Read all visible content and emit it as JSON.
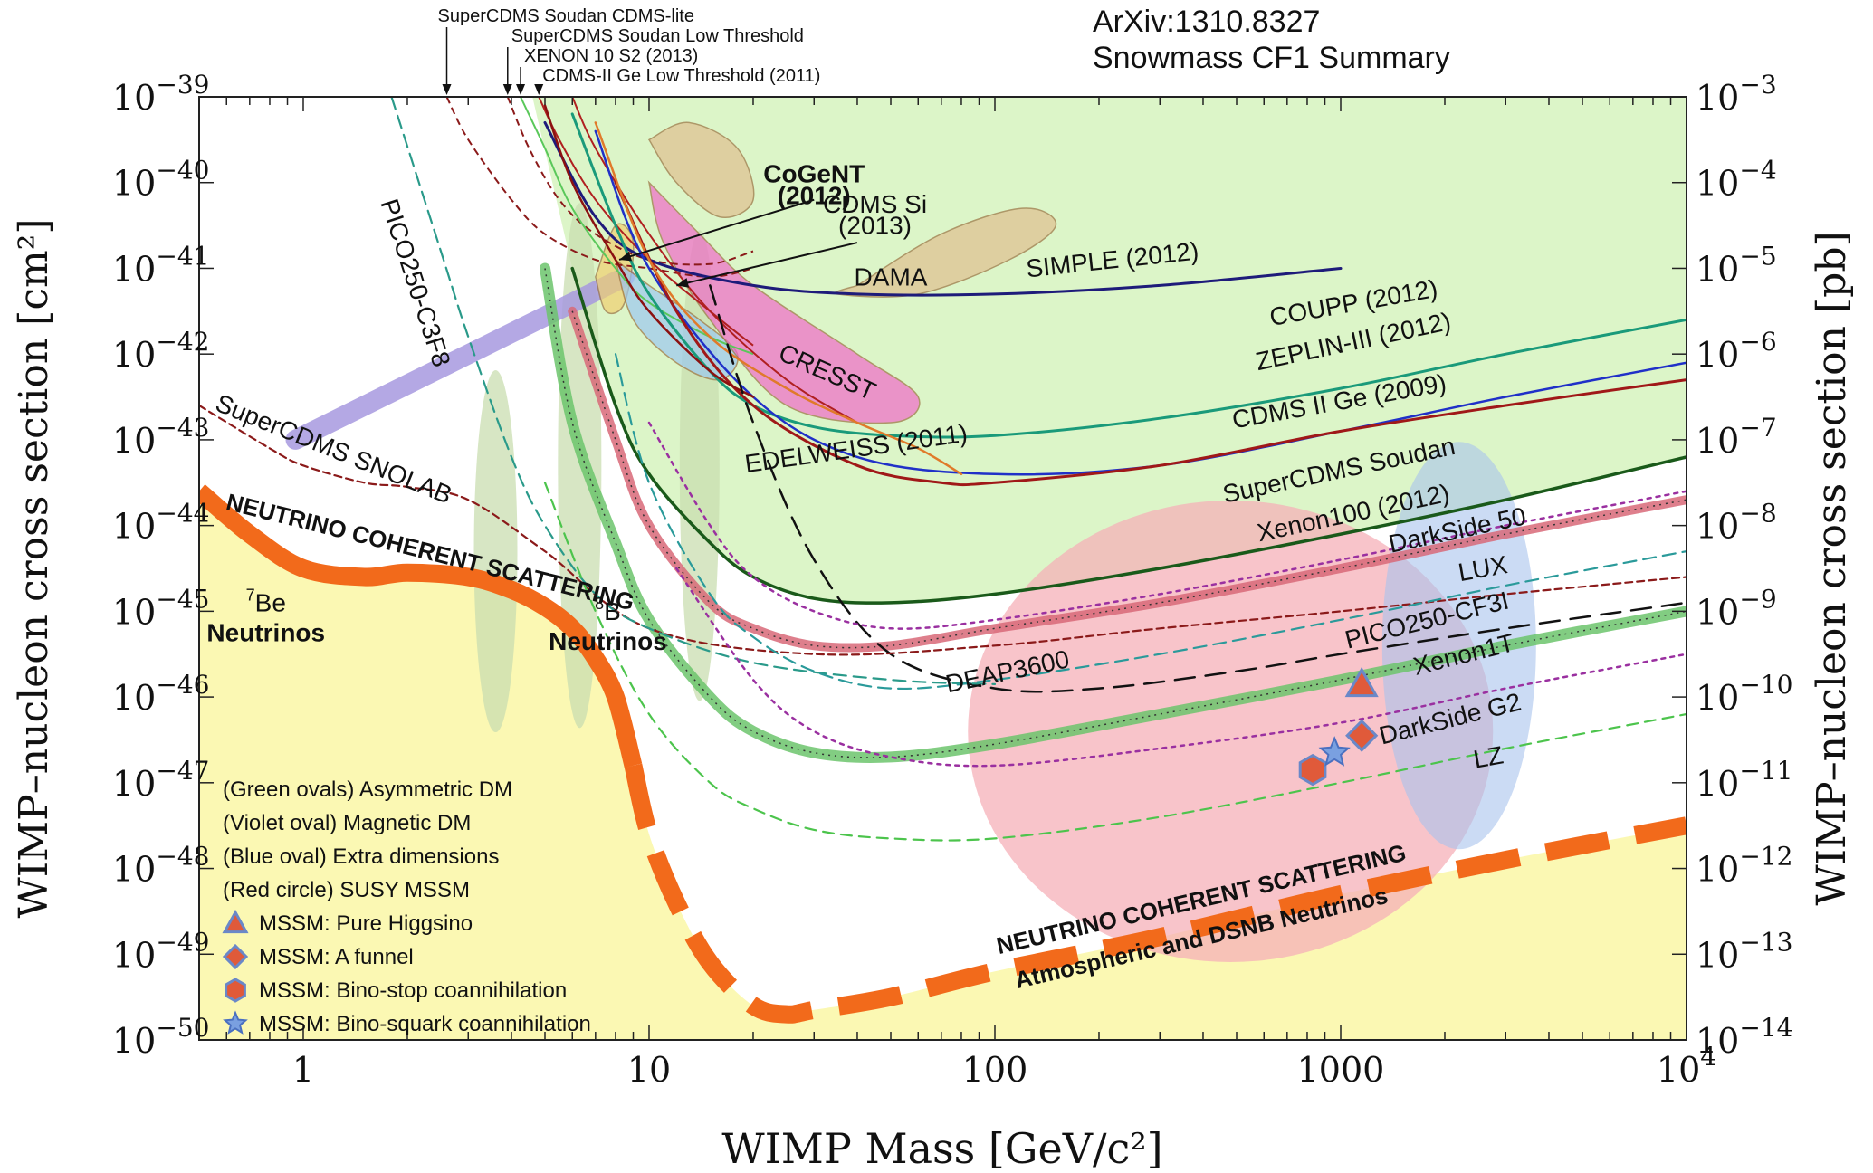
{
  "notes": {
    "arxiv": "ArXiv:1310.8327",
    "summary": "Snowmass CF1 Summary"
  },
  "chart_data": {
    "type": "line",
    "title": "",
    "xlabel": "WIMP Mass [GeV/c²]",
    "ylabel_left": "WIMP–nucleon cross section [cm²]",
    "ylabel_right": "WIMP–nucleon cross section [pb]",
    "xscale": "log",
    "yscale": "log",
    "xlim": [
      0.5,
      10000
    ],
    "ylim": [
      1e-50,
      1e-39
    ],
    "x_ticks": [
      {
        "value": 1,
        "label": "1"
      },
      {
        "value": 10,
        "label": "10"
      },
      {
        "value": 100,
        "label": "100"
      },
      {
        "value": 1000,
        "label": "1000"
      },
      {
        "value": 10000,
        "label": "10",
        "sup": "4"
      }
    ],
    "y_ticks_left": [
      {
        "value": -39,
        "label": "10",
        "sup": "−39"
      },
      {
        "value": -40,
        "label": "10",
        "sup": "−40"
      },
      {
        "value": -41,
        "label": "10",
        "sup": "−41"
      },
      {
        "value": -42,
        "label": "10",
        "sup": "−42"
      },
      {
        "value": -43,
        "label": "10",
        "sup": "−43"
      },
      {
        "value": -44,
        "label": "10",
        "sup": "−44"
      },
      {
        "value": -45,
        "label": "10",
        "sup": "−45"
      },
      {
        "value": -46,
        "label": "10",
        "sup": "−46"
      },
      {
        "value": -47,
        "label": "10",
        "sup": "−47"
      },
      {
        "value": -48,
        "label": "10",
        "sup": "−48"
      },
      {
        "value": -49,
        "label": "10",
        "sup": "−49"
      },
      {
        "value": -50,
        "label": "10",
        "sup": "−50"
      }
    ],
    "y_ticks_right": [
      {
        "value": -39,
        "label": "10",
        "sup": "−3"
      },
      {
        "value": -40,
        "label": "10",
        "sup": "−4"
      },
      {
        "value": -41,
        "label": "10",
        "sup": "−5"
      },
      {
        "value": -42,
        "label": "10",
        "sup": "−6"
      },
      {
        "value": -43,
        "label": "10",
        "sup": "−7"
      },
      {
        "value": -44,
        "label": "10",
        "sup": "−8"
      },
      {
        "value": -45,
        "label": "10",
        "sup": "−9"
      },
      {
        "value": -46,
        "label": "10",
        "sup": "−10"
      },
      {
        "value": -47,
        "label": "10",
        "sup": "−11"
      },
      {
        "value": -48,
        "label": "10",
        "sup": "−12"
      },
      {
        "value": -49,
        "label": "10",
        "sup": "−13"
      },
      {
        "value": -50,
        "label": "10",
        "sup": "−14"
      }
    ],
    "colors": {
      "excluded": "#dcf5c8",
      "nu_floor": "#fbf8b3",
      "floor_band": "#f26a1b",
      "red_circle": "#f6b0b8",
      "green_oval": "#c9ddb0",
      "violet_oval": "#a79ae0",
      "blue_oval": "#a8c3ec"
    },
    "series": [
      {
        "name": "SIMPLE (2012)",
        "color": "#1e1b7a",
        "width": 3,
        "dash": "",
        "x": [
          5,
          7,
          10,
          20,
          40,
          100,
          300,
          1000
        ],
        "y": [
          -39.3,
          -40.4,
          -40.9,
          -41.2,
          -41.3,
          -41.3,
          -41.2,
          -41.0
        ]
      },
      {
        "name": "COUPP (2012)",
        "color": "#1a9a7a",
        "width": 3,
        "dash": "",
        "x": [
          6,
          8,
          10,
          15,
          20,
          30,
          50,
          100,
          300,
          1000,
          3000,
          10000
        ],
        "y": [
          -39.2,
          -40.5,
          -41.3,
          -42.2,
          -42.6,
          -42.85,
          -42.95,
          -42.95,
          -42.75,
          -42.4,
          -42.0,
          -41.6
        ]
      },
      {
        "name": "ZEPLIN-III (2012)",
        "color": "#2030c8",
        "width": 2.5,
        "dash": "",
        "x": [
          7,
          10,
          20,
          40,
          100,
          300,
          1000,
          3000,
          10000
        ],
        "y": [
          -39.4,
          -41.0,
          -42.5,
          -43.2,
          -43.4,
          -43.3,
          -42.9,
          -42.5,
          -42.1
        ]
      },
      {
        "name": "CDMS II Ge (2009)",
        "color": "#a01818",
        "width": 3,
        "dash": "",
        "x": [
          8,
          12,
          20,
          40,
          70,
          100,
          300,
          1000,
          3000,
          10000
        ],
        "y": [
          -40.0,
          -41.5,
          -42.6,
          -43.3,
          -43.5,
          -43.5,
          -43.3,
          -42.9,
          -42.6,
          -42.3
        ]
      },
      {
        "name": "EDELWEISS (2011)",
        "color": "#e07a2a",
        "width": 2.5,
        "dash": "",
        "x": [
          7,
          10,
          15,
          25,
          40,
          60,
          80
        ],
        "y": [
          -39.3,
          -40.9,
          -41.8,
          -42.4,
          -42.8,
          -43.1,
          -43.4
        ]
      },
      {
        "name": "SuperCDMS Soudan",
        "color": "#8b1111",
        "width": 2.5,
        "dash": "",
        "x": [
          5,
          6,
          8,
          10,
          15,
          20
        ],
        "y": [
          -39.1,
          -40.0,
          -40.9,
          -41.5,
          -42.2,
          -42.5
        ]
      },
      {
        "name": "Xenon100 (2012)",
        "color": "#1a5a1a",
        "width": 3.5,
        "dash": "",
        "x": [
          6,
          8,
          10,
          15,
          20,
          30,
          50,
          100,
          300,
          1000,
          3000,
          10000
        ],
        "y": [
          -41.0,
          -42.6,
          -43.4,
          -44.2,
          -44.6,
          -44.85,
          -44.9,
          -44.8,
          -44.5,
          -44.1,
          -43.7,
          -43.2
        ]
      },
      {
        "name": "LUX",
        "color": "#d86878",
        "width": 10,
        "dash": "",
        "x": [
          6,
          8,
          10,
          15,
          20,
          30,
          50,
          100,
          300,
          1000,
          3000,
          10000
        ],
        "y": [
          -41.5,
          -43.0,
          -44.0,
          -44.9,
          -45.2,
          -45.4,
          -45.4,
          -45.2,
          -44.9,
          -44.5,
          -44.1,
          -43.7
        ]
      },
      {
        "name": "Xenon1T",
        "color": "#6cc46c",
        "width": 12,
        "dash": "",
        "x": [
          5,
          6,
          8,
          10,
          15,
          20,
          30,
          50,
          100,
          300,
          1000,
          3000,
          10000
        ],
        "y": [
          -41.0,
          -42.8,
          -44.2,
          -45.1,
          -46.0,
          -46.4,
          -46.65,
          -46.7,
          -46.55,
          -46.2,
          -45.8,
          -45.4,
          -45.0
        ]
      },
      {
        "name": "DEAP3600",
        "color": "#111111",
        "width": 2.5,
        "dash": "22 12",
        "x": [
          15,
          20,
          30,
          50,
          100,
          200,
          500,
          1000,
          3000,
          10000
        ],
        "y": [
          -41.2,
          -42.8,
          -44.4,
          -45.5,
          -45.9,
          -45.9,
          -45.7,
          -45.5,
          -45.2,
          -44.9
        ]
      },
      {
        "name": "SuperCDMS SNOLAB",
        "color": "#8b1a1a",
        "width": 2.2,
        "dash": "8 5",
        "x": [
          0.5,
          0.8,
          1,
          1.5,
          2,
          3,
          5,
          10,
          30,
          100,
          300,
          1000,
          3000,
          10000
        ],
        "y": [
          -42.6,
          -43.1,
          -43.3,
          -43.5,
          -43.55,
          -43.7,
          -44.3,
          -45.2,
          -45.5,
          -45.4,
          -45.2,
          -45.0,
          -44.8,
          -44.6
        ]
      },
      {
        "name": "PICO250-C3F8",
        "color": "#2a9a8a",
        "width": 2.2,
        "dash": "14 8",
        "x": [
          1.8,
          2.5,
          3,
          4,
          5,
          7,
          10,
          20,
          50,
          100
        ],
        "y": [
          -39.0,
          -40.8,
          -41.8,
          -43.2,
          -44.0,
          -44.8,
          -45.2,
          -45.6,
          -45.8,
          -45.85
        ]
      },
      {
        "name": "PICO250-CF3I",
        "color": "#2a9a9a",
        "width": 2.2,
        "dash": "14 8",
        "x": [
          8,
          10,
          15,
          20,
          30,
          50,
          100,
          300,
          1000,
          3000,
          10000
        ],
        "y": [
          -42.0,
          -43.5,
          -44.8,
          -45.3,
          -45.7,
          -45.9,
          -45.8,
          -45.5,
          -45.1,
          -44.7,
          -44.3
        ]
      },
      {
        "name": "DarkSide 50",
        "color": "#9a30a0",
        "width": 2.5,
        "dash": "4 6",
        "x": [
          10,
          15,
          20,
          30,
          50,
          100,
          300,
          1000,
          3000,
          10000
        ],
        "y": [
          -42.8,
          -44.0,
          -44.6,
          -45.0,
          -45.2,
          -45.1,
          -44.8,
          -44.4,
          -44.0,
          -43.6
        ]
      },
      {
        "name": "DarkSide G2",
        "color": "#9a30a0",
        "width": 2.5,
        "dash": "4 6",
        "x": [
          12,
          20,
          30,
          50,
          100,
          300,
          1000,
          3000,
          10000
        ],
        "y": [
          -44.5,
          -45.8,
          -46.4,
          -46.7,
          -46.8,
          -46.6,
          -46.3,
          -45.9,
          -45.5
        ]
      },
      {
        "name": "LZ",
        "color": "#4cc44c",
        "width": 2.2,
        "dash": "12 8",
        "x": [
          5,
          7,
          10,
          15,
          20,
          30,
          50,
          100,
          300,
          1000,
          3000,
          10000
        ],
        "y": [
          -43.5,
          -45.0,
          -46.2,
          -47.0,
          -47.3,
          -47.55,
          -47.65,
          -47.65,
          -47.4,
          -47.0,
          -46.6,
          -46.2
        ]
      }
    ],
    "floor_band_points": {
      "x": [
        0.5,
        0.7,
        1,
        1.5,
        2,
        3,
        4,
        5,
        6,
        7,
        8,
        9,
        10,
        12,
        15,
        20,
        25,
        30,
        50,
        100,
        300,
        1000,
        3000,
        10000
      ],
      "y": [
        -43.6,
        -44.1,
        -44.5,
        -44.6,
        -44.55,
        -44.6,
        -44.75,
        -44.95,
        -45.2,
        -45.55,
        -46.0,
        -46.8,
        -47.6,
        -48.4,
        -49.1,
        -49.6,
        -49.7,
        -49.65,
        -49.5,
        -49.2,
        -48.8,
        -48.3,
        -47.9,
        -47.5
      ]
    },
    "regions": [
      {
        "name": "CoGeNT (2012)",
        "color": "#f0d070",
        "x": [
          7.0,
          8.0,
          9.0,
          8.5,
          7.5
        ],
        "y": [
          -41.1,
          -40.5,
          -40.7,
          -41.4,
          -41.5
        ]
      },
      {
        "name": "CDMS Si (2013)",
        "color": "#9cc8f0",
        "x": [
          8,
          10,
          14,
          18,
          16,
          12,
          9
        ],
        "y": [
          -40.9,
          -41.2,
          -41.6,
          -42.0,
          -42.3,
          -42.1,
          -41.6
        ]
      },
      {
        "name": "DAMA",
        "color": "#e0c090",
        "x": [
          40,
          70,
          120,
          150,
          110,
          60,
          35
        ],
        "y": [
          -41.2,
          -40.6,
          -40.3,
          -40.5,
          -40.9,
          -41.3,
          -41.3
        ]
      },
      {
        "name": "DAMA",
        "color": "#e0c090",
        "x": [
          10,
          13,
          18,
          20,
          16,
          12
        ],
        "y": [
          -39.5,
          -39.3,
          -39.6,
          -40.2,
          -40.4,
          -40.0
        ]
      },
      {
        "name": "CRESST",
        "color": "#f06ac8",
        "x": [
          10,
          14,
          20,
          40,
          60,
          50,
          25,
          15,
          11
        ],
        "y": [
          -40.0,
          -40.6,
          -41.2,
          -42.0,
          -42.5,
          -42.8,
          -42.6,
          -41.6,
          -40.7
        ]
      }
    ],
    "arrows": [
      {
        "label": "CoGeNT (2012)",
        "x_from": 30,
        "y_from": -40.2,
        "x_to": 8.2,
        "y_to": -40.9
      },
      {
        "label": "CDMS Si (2013)",
        "x_from": 40,
        "y_from": -40.7,
        "x_to": 12,
        "y_to": -41.2
      }
    ],
    "top_labels": [
      {
        "label": "SuperCDMS Soudan CDMS-lite",
        "x": 2.6
      },
      {
        "label": "SuperCDMS Soudan Low Threshold",
        "x": 3.9
      },
      {
        "label": "XENON 10 S2 (2013)",
        "x": 4.25
      },
      {
        "label": "CDMS-II Ge Low Threshold (2011)",
        "x": 4.8
      }
    ],
    "in_plot_labels": [
      {
        "text": "SIMPLE (2012)",
        "color": "#1e1b7a",
        "x": 220,
        "y": -41.0,
        "rot": -6
      },
      {
        "text": "COUPP (2012)",
        "color": "#1a9a7a",
        "x": 1100,
        "y": -41.5,
        "rot": -10
      },
      {
        "text": "ZEPLIN-III (2012)",
        "color": "#2030c8",
        "x": 1100,
        "y": -41.95,
        "rot": -12
      },
      {
        "text": "CDMS II Ge  (2009)",
        "color": "#a01818",
        "x": 1000,
        "y": -42.65,
        "rot": -10
      },
      {
        "text": "EDELWEISS (2011)",
        "color": "#e07a2a",
        "x": 40,
        "y": -43.2,
        "rot": -8
      },
      {
        "text": "SuperCDMS Soudan",
        "color": "#8b1111",
        "x": 1000,
        "y": -43.45,
        "rot": -12
      },
      {
        "text": "Xenon100 (2012)",
        "color": "#1a6a1a",
        "x": 1100,
        "y": -43.95,
        "rot": -12
      },
      {
        "text": "DarkSide 50",
        "color": "#7a2a8a",
        "x": 2200,
        "y": -44.15,
        "rot": -12
      },
      {
        "text": "LUX",
        "color": "#2a8a2a",
        "x": 2600,
        "y": -44.6,
        "rot": -10
      },
      {
        "text": "PICO250-CF3I",
        "color": "#2a9a9a",
        "x": 1800,
        "y": -45.2,
        "rot": -14
      },
      {
        "text": "Xenon1T",
        "color": "#1a6a1a",
        "x": 2300,
        "y": -45.6,
        "rot": -14
      },
      {
        "text": "DarkSide G2",
        "color": "#7a2a8a",
        "x": 2100,
        "y": -46.35,
        "rot": -14
      },
      {
        "text": "LZ",
        "color": "#2a8a2a",
        "x": 2700,
        "y": -46.8,
        "rot": -10
      },
      {
        "text": "DEAP3600",
        "color": "#555555",
        "x": 110,
        "y": -45.8,
        "rot": -12
      },
      {
        "text": "SuperCDMS SNOLAB",
        "color": "#8b1a1a",
        "x": 1.2,
        "y": -43.2,
        "rot": 22
      },
      {
        "text": "PICO250-C3F8",
        "color": "#2a9a8a",
        "x": 2.0,
        "y": -41.2,
        "rot": 72
      },
      {
        "text": "CRESST",
        "color": "#d020a0",
        "x": 32,
        "y": -42.3,
        "rot": 24
      },
      {
        "text": "DAMA",
        "color": "#8a6a40",
        "x": 50,
        "y": -41.2,
        "rot": 0
      },
      {
        "text": "CoGeNT",
        "color": "#111111",
        "x": 30,
        "y": -40.0,
        "rot": 0
      },
      {
        "text": "(2012)",
        "color": "#111111",
        "x": 30,
        "y": -40.25,
        "rot": 0
      },
      {
        "text": "CDMS Si",
        "color": "#3060c8",
        "x": 45,
        "y": -40.35,
        "rot": 0
      },
      {
        "text": "(2013)",
        "color": "#3060c8",
        "x": 45,
        "y": -40.6,
        "rot": 0
      },
      {
        "text": "Be",
        "color": "#111111",
        "x": 0.78,
        "y": -45.0,
        "rot": 0,
        "sup": "7"
      },
      {
        "text": "Neutrinos",
        "color": "#111111",
        "x": 0.78,
        "y": -45.35,
        "rot": 0
      },
      {
        "text": "B",
        "color": "#111111",
        "x": 7.6,
        "y": -45.1,
        "rot": 0,
        "sup": "8"
      },
      {
        "text": "Neutrinos",
        "color": "#111111",
        "x": 7.6,
        "y": -45.45,
        "rot": 0
      },
      {
        "text": "NEUTRINO COHERENT SCATTERING",
        "color": "#111111",
        "x": 2.3,
        "y": -44.4,
        "rot": 14
      },
      {
        "text": "NEUTRINO COHERENT SCATTERING",
        "color": "#111111",
        "x": 400,
        "y": -48.45,
        "rot": -13
      },
      {
        "text": "Atmospheric and DSNB Neutrinos",
        "color": "#111111",
        "x": 400,
        "y": -48.9,
        "rot": -13
      }
    ],
    "legend": [
      {
        "text": "(Green ovals) Asymmetric DM",
        "color": "#5aa628",
        "marker": ""
      },
      {
        "text": "(Violet oval) Magnetic DM",
        "color": "#3a2a8a",
        "marker": ""
      },
      {
        "text": "(Blue oval) Extra dimensions",
        "color": "#3a88c8",
        "marker": ""
      },
      {
        "text": "(Red circle) SUSY MSSM",
        "color": "#e03818",
        "marker": ""
      },
      {
        "text": "MSSM: Pure Higgsino",
        "color": "#e03818",
        "marker": "triangle"
      },
      {
        "text": "MSSM: A funnel",
        "color": "#e03818",
        "marker": "diamond"
      },
      {
        "text": "MSSM: Bino-stop coannihilation",
        "color": "#e03818",
        "marker": "hexagon"
      },
      {
        "text": "MSSM: Bino-squark coannihilation",
        "color": "#e03818",
        "marker": "star"
      }
    ],
    "mssm_points": [
      {
        "marker": "triangle",
        "x": 1150,
        "y": -45.85
      },
      {
        "marker": "diamond",
        "x": 1150,
        "y": -46.45
      },
      {
        "marker": "hexagon",
        "x": 830,
        "y": -46.85
      },
      {
        "marker": "star",
        "x": 960,
        "y": -46.65
      }
    ]
  }
}
